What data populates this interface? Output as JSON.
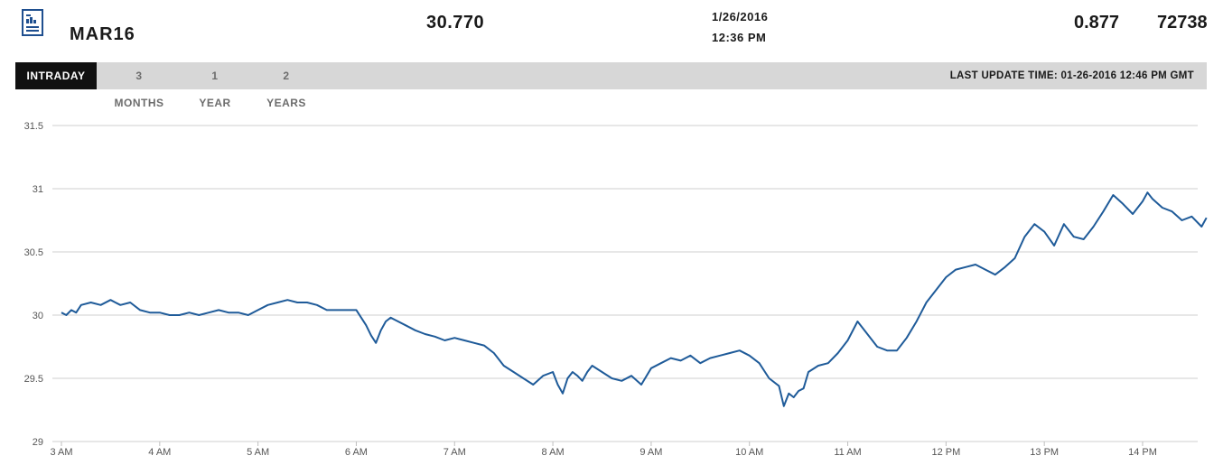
{
  "header": {
    "contract": "MAR16",
    "last": "30.770",
    "date": "1/26/2016",
    "time": "12:36 PM",
    "change": "0.877",
    "volume": "72738"
  },
  "tabs": [
    {
      "label": "INTRADAY",
      "active": true
    },
    {
      "label": "3 MONTHS",
      "active": false
    },
    {
      "label": "1 YEAR",
      "active": false
    },
    {
      "label": "2 YEARS",
      "active": false
    }
  ],
  "last_update": "LAST UPDATE TIME: 01-26-2016 12:46 PM GMT",
  "colors": {
    "line": "#1f5b99",
    "icon": "#1f4f8f"
  },
  "chart_data": {
    "type": "line",
    "title": "",
    "xlabel": "",
    "ylabel": "",
    "grid": true,
    "ylim": [
      29,
      31.5
    ],
    "xlim": [
      3,
      14.65
    ],
    "yticks": [
      "29",
      "29.5",
      "30",
      "30.5",
      "31",
      "31.5"
    ],
    "xticks": [
      {
        "value": 3,
        "label": "3 AM"
      },
      {
        "value": 4,
        "label": "4 AM"
      },
      {
        "value": 5,
        "label": "5 AM"
      },
      {
        "value": 6,
        "label": "6 AM"
      },
      {
        "value": 7,
        "label": "7 AM"
      },
      {
        "value": 8,
        "label": "8 AM"
      },
      {
        "value": 9,
        "label": "9 AM"
      },
      {
        "value": 10,
        "label": "10 AM"
      },
      {
        "value": 11,
        "label": "11 AM"
      },
      {
        "value": 12,
        "label": "12 PM"
      },
      {
        "value": 13,
        "label": "13 PM"
      },
      {
        "value": 14,
        "label": "14 PM"
      }
    ],
    "series": [
      {
        "x": [
          3.0,
          3.05,
          3.1,
          3.15,
          3.2,
          3.3,
          3.4,
          3.5,
          3.6,
          3.7,
          3.8,
          3.9,
          4.0,
          4.1,
          4.2,
          4.3,
          4.4,
          4.5,
          4.6,
          4.7,
          4.8,
          4.9,
          5.0,
          5.1,
          5.2,
          5.3,
          5.4,
          5.5,
          5.6,
          5.7,
          5.8,
          5.9,
          6.0,
          6.05,
          6.1,
          6.15,
          6.2,
          6.25,
          6.3,
          6.35,
          6.4,
          6.5,
          6.6,
          6.7,
          6.8,
          6.9,
          7.0,
          7.1,
          7.2,
          7.3,
          7.4,
          7.5,
          7.6,
          7.7,
          7.8,
          7.9,
          8.0,
          8.05,
          8.1,
          8.15,
          8.2,
          8.25,
          8.3,
          8.35,
          8.4,
          8.5,
          8.6,
          8.7,
          8.8,
          8.9,
          9.0,
          9.1,
          9.2,
          9.3,
          9.4,
          9.5,
          9.6,
          9.7,
          9.8,
          9.9,
          10.0,
          10.1,
          10.2,
          10.3,
          10.35,
          10.4,
          10.45,
          10.5,
          10.55,
          10.6,
          10.7,
          10.8,
          10.9,
          11.0,
          11.1,
          11.2,
          11.3,
          11.4,
          11.5,
          11.6,
          11.7,
          11.8,
          11.9,
          12.0,
          12.1,
          12.2,
          12.3,
          12.4,
          12.5,
          12.6,
          12.7,
          12.8,
          12.9,
          13.0,
          13.1,
          13.2,
          13.3,
          13.4,
          13.5,
          13.6,
          13.7,
          13.8,
          13.9,
          14.0,
          14.05,
          14.1,
          14.2,
          14.3,
          14.4,
          14.5,
          14.6,
          14.65
        ],
        "y": [
          30.02,
          30.0,
          30.04,
          30.02,
          30.08,
          30.1,
          30.08,
          30.12,
          30.08,
          30.1,
          30.04,
          30.02,
          30.02,
          30.0,
          30.0,
          30.02,
          30.0,
          30.02,
          30.04,
          30.02,
          30.02,
          30.0,
          30.04,
          30.08,
          30.1,
          30.12,
          30.1,
          30.1,
          30.08,
          30.04,
          30.04,
          30.04,
          30.04,
          29.98,
          29.92,
          29.84,
          29.78,
          29.88,
          29.95,
          29.98,
          29.96,
          29.92,
          29.88,
          29.85,
          29.83,
          29.8,
          29.82,
          29.8,
          29.78,
          29.76,
          29.7,
          29.6,
          29.55,
          29.5,
          29.45,
          29.52,
          29.55,
          29.45,
          29.38,
          29.5,
          29.55,
          29.52,
          29.48,
          29.55,
          29.6,
          29.55,
          29.5,
          29.48,
          29.52,
          29.45,
          29.58,
          29.62,
          29.66,
          29.64,
          29.68,
          29.62,
          29.66,
          29.68,
          29.7,
          29.72,
          29.68,
          29.62,
          29.5,
          29.44,
          29.28,
          29.38,
          29.35,
          29.4,
          29.42,
          29.55,
          29.6,
          29.62,
          29.7,
          29.8,
          29.95,
          29.85,
          29.75,
          29.72,
          29.72,
          29.82,
          29.95,
          30.1,
          30.2,
          30.3,
          30.36,
          30.38,
          30.4,
          30.36,
          30.32,
          30.38,
          30.45,
          30.62,
          30.72,
          30.66,
          30.55,
          30.72,
          30.62,
          30.6,
          30.7,
          30.82,
          30.95,
          30.88,
          30.8,
          30.9,
          30.97,
          30.92,
          30.85,
          30.82,
          30.75,
          30.78,
          30.7,
          30.77
        ]
      }
    ]
  }
}
